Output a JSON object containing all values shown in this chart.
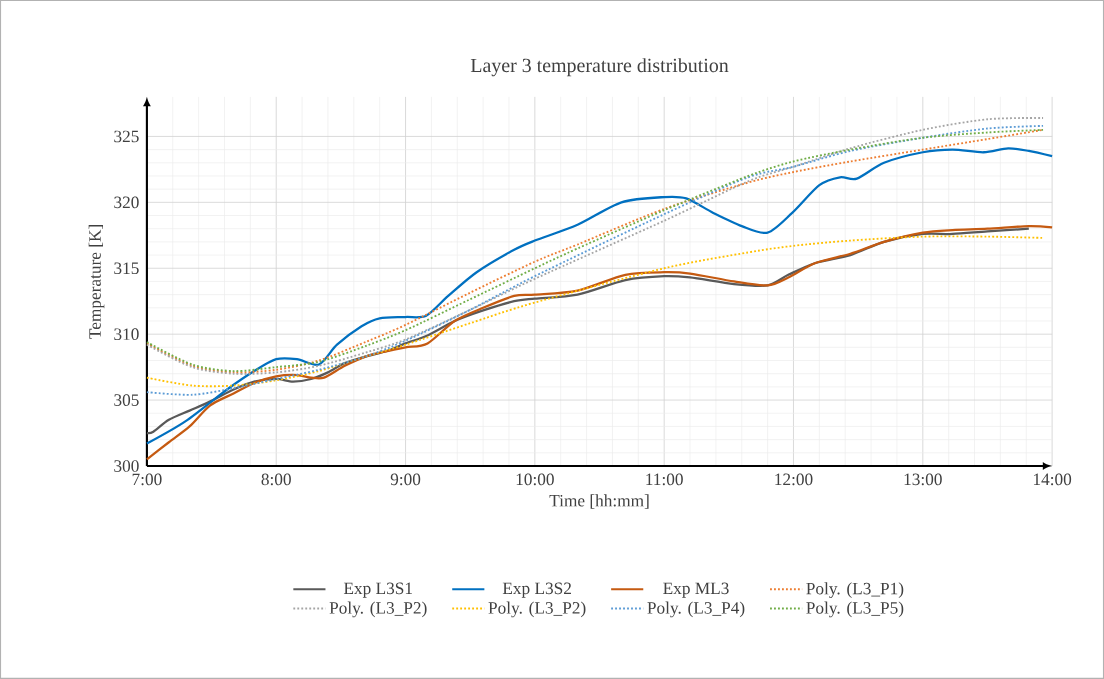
{
  "chart_data": {
    "type": "line",
    "title": "Layer 3 temperature distribution",
    "xlabel": "Time  [hh:mm]",
    "ylabel": "Temperature  [K]",
    "xlim": [
      7,
      14
    ],
    "ylim": [
      300,
      328
    ],
    "xticks": [
      {
        "value": 7,
        "label": "7:00"
      },
      {
        "value": 8,
        "label": "8:00"
      },
      {
        "value": 9,
        "label": "9:00"
      },
      {
        "value": 10,
        "label": "10:00"
      },
      {
        "value": 11,
        "label": "11:00"
      },
      {
        "value": 12,
        "label": "12:00"
      },
      {
        "value": 13,
        "label": "13:00"
      },
      {
        "value": 14,
        "label": "14:00"
      }
    ],
    "yticks": [
      300,
      305,
      310,
      315,
      320,
      325
    ],
    "grid": true,
    "legend": "bottom",
    "marker": "none",
    "series": [
      {
        "name": "Exp L3S1",
        "color": "#595959",
        "line_style": "solid",
        "x": [
          7.0,
          7.05,
          7.17,
          7.33,
          7.49,
          7.67,
          7.83,
          8.0,
          8.13,
          8.27,
          8.4,
          8.53,
          8.69,
          8.85,
          9.0,
          9.17,
          9.38,
          9.6,
          9.84,
          10.0,
          10.33,
          10.7,
          11.0,
          11.2,
          11.54,
          11.8,
          11.96,
          12.17,
          12.44,
          12.7,
          13.0,
          13.23,
          13.5,
          13.82
        ],
        "values": [
          302.5,
          302.6,
          303.5,
          304.2,
          304.9,
          305.8,
          306.4,
          306.6,
          306.4,
          306.6,
          307.1,
          307.8,
          308.3,
          308.7,
          309.3,
          309.9,
          311.0,
          311.8,
          312.5,
          312.7,
          313.0,
          314.1,
          314.4,
          314.3,
          313.8,
          313.7,
          314.5,
          315.4,
          316.0,
          317.0,
          317.6,
          317.6,
          317.8,
          318.0
        ]
      },
      {
        "name": "Exp L3S2",
        "color": "#0070c0",
        "line_style": "solid",
        "x": [
          7.0,
          7.3,
          7.62,
          7.83,
          8.0,
          8.16,
          8.33,
          8.47,
          8.66,
          8.8,
          9.0,
          9.16,
          9.33,
          9.55,
          9.84,
          10.0,
          10.33,
          10.67,
          11.0,
          11.17,
          11.38,
          11.6,
          11.8,
          11.99,
          12.2,
          12.36,
          12.49,
          12.7,
          13.0,
          13.23,
          13.47,
          13.66,
          13.82,
          14.0
        ],
        "values": [
          301.7,
          303.4,
          305.8,
          307.2,
          308.1,
          308.1,
          307.7,
          309.2,
          310.6,
          311.2,
          311.3,
          311.4,
          312.9,
          314.7,
          316.4,
          317.1,
          318.3,
          320.0,
          320.4,
          320.3,
          319.2,
          318.2,
          317.7,
          319.2,
          321.3,
          321.9,
          321.8,
          323.0,
          323.8,
          324.0,
          323.8,
          324.1,
          323.9,
          323.5
        ]
      },
      {
        "name": "Exp ML3",
        "color": "#c55a11",
        "line_style": "solid",
        "x": [
          7.0,
          7.17,
          7.33,
          7.49,
          7.67,
          7.83,
          8.0,
          8.16,
          8.27,
          8.37,
          8.53,
          8.69,
          8.85,
          9.0,
          9.17,
          9.38,
          9.6,
          9.84,
          10.0,
          10.33,
          10.7,
          11.0,
          11.2,
          11.54,
          11.8,
          11.96,
          12.17,
          12.44,
          12.7,
          13.0,
          13.23,
          13.5,
          13.82,
          14.0
        ],
        "values": [
          300.5,
          301.8,
          303.0,
          304.6,
          305.5,
          306.3,
          306.8,
          306.9,
          306.7,
          306.7,
          307.6,
          308.3,
          308.7,
          309.0,
          309.3,
          311.0,
          312.0,
          312.9,
          313.0,
          313.3,
          314.5,
          314.7,
          314.6,
          314.0,
          313.7,
          314.3,
          315.4,
          316.1,
          317.0,
          317.7,
          317.9,
          318.0,
          318.2,
          318.1
        ]
      },
      {
        "name": "Poly. (L3_P1)",
        "color": "#ed7d31",
        "line_style": "dotted",
        "x": [
          7.0,
          7.35,
          7.67,
          8.0,
          8.33,
          8.69,
          9.0,
          9.49,
          10.0,
          10.33,
          11.0,
          11.65,
          12.0,
          12.44,
          13.0,
          13.5,
          13.93
        ],
        "values": [
          309.3,
          307.6,
          307.1,
          307.3,
          308.0,
          309.4,
          310.7,
          313.1,
          315.5,
          316.8,
          319.5,
          321.5,
          322.3,
          323.1,
          324.0,
          324.8,
          325.5
        ]
      },
      {
        "name": "Poly. (L3_P2)",
        "color": "#a5a5a5",
        "line_style": "dotted",
        "x": [
          7.0,
          7.35,
          7.67,
          8.0,
          8.33,
          8.69,
          9.0,
          9.49,
          10.0,
          11.0,
          11.65,
          12.0,
          12.44,
          13.0,
          13.5,
          13.93
        ],
        "values": [
          309.2,
          307.5,
          307.0,
          307.1,
          307.6,
          308.6,
          309.6,
          311.8,
          314.2,
          318.6,
          321.6,
          322.7,
          324.1,
          325.5,
          326.3,
          326.4
        ]
      },
      {
        "name": "Poly. (L3_P2)",
        "color": "#ffc000",
        "line_style": "dotted",
        "x": [
          7.0,
          7.35,
          7.67,
          8.0,
          8.33,
          8.69,
          9.0,
          9.49,
          10.0,
          11.0,
          11.65,
          12.0,
          12.44,
          13.0,
          13.5,
          13.93
        ],
        "values": [
          306.7,
          306.1,
          306.1,
          306.5,
          307.2,
          308.3,
          309.2,
          310.8,
          312.4,
          315.0,
          316.2,
          316.7,
          317.1,
          317.4,
          317.4,
          317.3
        ]
      },
      {
        "name": "Poly. (L3_P4)",
        "color": "#5b9bd5",
        "line_style": "dotted",
        "x": [
          7.0,
          7.35,
          7.67,
          8.0,
          8.33,
          8.69,
          9.0,
          9.49,
          10.0,
          11.0,
          11.65,
          12.0,
          12.44,
          13.0,
          13.5,
          13.93
        ],
        "values": [
          305.6,
          305.4,
          305.9,
          306.6,
          307.3,
          308.3,
          309.5,
          311.8,
          314.4,
          319.1,
          321.9,
          322.7,
          323.9,
          324.9,
          325.6,
          325.8
        ]
      },
      {
        "name": "Poly. (L3_P5)",
        "color": "#70ad47",
        "line_style": "dotted",
        "x": [
          7.0,
          7.35,
          7.67,
          8.0,
          8.33,
          8.69,
          9.0,
          9.49,
          10.0,
          10.33,
          11.0,
          11.65,
          12.0,
          12.44,
          13.0,
          13.5,
          13.93
        ],
        "values": [
          309.4,
          307.7,
          307.2,
          307.5,
          307.9,
          309.1,
          310.3,
          312.6,
          315.0,
          316.5,
          319.4,
          322.0,
          323.1,
          324.0,
          324.9,
          325.3,
          325.5
        ]
      }
    ]
  }
}
